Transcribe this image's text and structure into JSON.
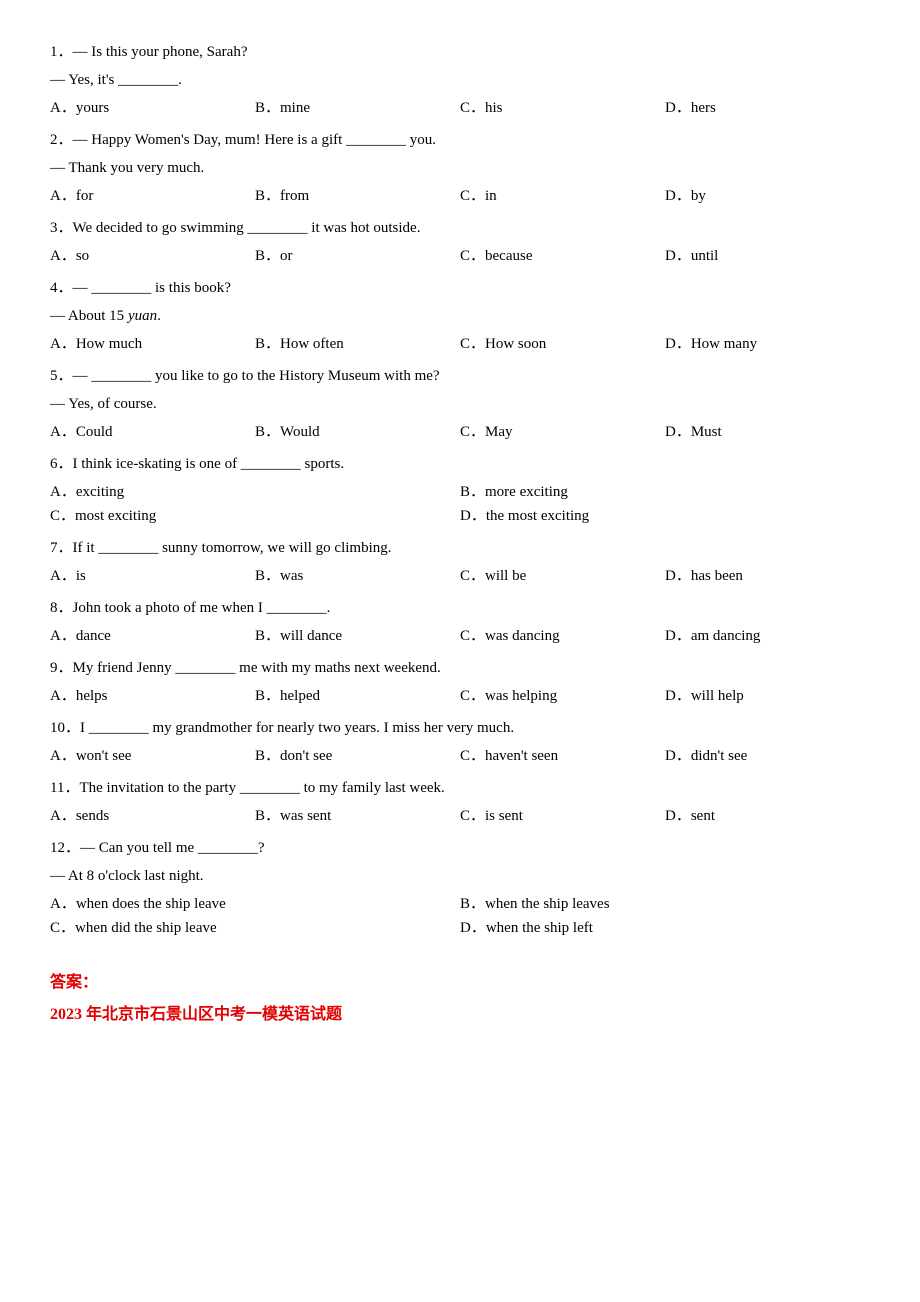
{
  "questions": [
    {
      "num": "1．",
      "lines": [
        "— Is this your phone, Sarah?",
        "— Yes, it's ________."
      ],
      "options": [
        {
          "letter": "A．",
          "text": "yours"
        },
        {
          "letter": "B．",
          "text": "mine"
        },
        {
          "letter": "C．",
          "text": "his"
        },
        {
          "letter": "D．",
          "text": "hers"
        }
      ],
      "cols": 4
    },
    {
      "num": "2．",
      "lines": [
        "— Happy Women's Day, mum! Here is a gift ________ you.",
        "— Thank you very much."
      ],
      "options": [
        {
          "letter": "A．",
          "text": "for"
        },
        {
          "letter": "B．",
          "text": "from"
        },
        {
          "letter": "C．",
          "text": "in"
        },
        {
          "letter": "D．",
          "text": "by"
        }
      ],
      "cols": 4
    },
    {
      "num": "3．",
      "lines": [
        "We decided to go swimming ________ it was hot outside."
      ],
      "options": [
        {
          "letter": "A．",
          "text": "so"
        },
        {
          "letter": "B．",
          "text": "or"
        },
        {
          "letter": "C．",
          "text": "because"
        },
        {
          "letter": "D．",
          "text": "until"
        }
      ],
      "cols": 4
    },
    {
      "num": "4．",
      "lines": [
        "— ________ is this book?",
        "— About 15 <span class=\"italic\">yuan</span>."
      ],
      "options": [
        {
          "letter": "A．",
          "text": "How much"
        },
        {
          "letter": "B．",
          "text": "How often"
        },
        {
          "letter": "C．",
          "text": "How soon"
        },
        {
          "letter": "D．",
          "text": "How many"
        }
      ],
      "cols": 4
    },
    {
      "num": "5．",
      "lines": [
        "— ________ you like to go to the History Museum with me?",
        "— Yes, of course."
      ],
      "options": [
        {
          "letter": "A．",
          "text": "Could"
        },
        {
          "letter": "B．",
          "text": "Would"
        },
        {
          "letter": "C．",
          "text": "May"
        },
        {
          "letter": "D．",
          "text": "Must"
        }
      ],
      "cols": 4
    },
    {
      "num": "6．",
      "lines": [
        "I think ice-skating is one of ________ sports."
      ],
      "options": [
        {
          "letter": "A．",
          "text": "exciting"
        },
        {
          "letter": "B．",
          "text": "more exciting"
        },
        {
          "letter": "C．",
          "text": "most exciting"
        },
        {
          "letter": "D．",
          "text": "the most exciting"
        }
      ],
      "cols": 2
    },
    {
      "num": "7．",
      "lines": [
        "If it ________ sunny tomorrow, we will go climbing."
      ],
      "options": [
        {
          "letter": "A．",
          "text": "is"
        },
        {
          "letter": "B．",
          "text": "was"
        },
        {
          "letter": "C．",
          "text": "will be"
        },
        {
          "letter": "D．",
          "text": "has been"
        }
      ],
      "cols": 4
    },
    {
      "num": "8．",
      "lines": [
        "John took a photo of me when I ________."
      ],
      "options": [
        {
          "letter": "A．",
          "text": "dance"
        },
        {
          "letter": "B．",
          "text": "will dance"
        },
        {
          "letter": "C．",
          "text": "was dancing"
        },
        {
          "letter": "D．",
          "text": "am dancing"
        }
      ],
      "cols": 4
    },
    {
      "num": "9．",
      "lines": [
        "My friend Jenny ________ me with my maths next weekend."
      ],
      "options": [
        {
          "letter": "A．",
          "text": "helps"
        },
        {
          "letter": "B．",
          "text": "helped"
        },
        {
          "letter": "C．",
          "text": "was helping"
        },
        {
          "letter": "D．",
          "text": "will help"
        }
      ],
      "cols": 4
    },
    {
      "num": "10．",
      "lines": [
        "I ________ my grandmother for nearly two years. I miss her very much."
      ],
      "options": [
        {
          "letter": "A．",
          "text": "won't see"
        },
        {
          "letter": "B．",
          "text": "don't see"
        },
        {
          "letter": "C．",
          "text": "haven't seen"
        },
        {
          "letter": "D．",
          "text": "didn't see"
        }
      ],
      "cols": 4
    },
    {
      "num": "11．",
      "lines": [
        "The invitation to the party ________ to my family last week."
      ],
      "options": [
        {
          "letter": "A．",
          "text": "sends"
        },
        {
          "letter": "B．",
          "text": "was sent"
        },
        {
          "letter": "C．",
          "text": "is sent"
        },
        {
          "letter": "D．",
          "text": "sent"
        }
      ],
      "cols": 4
    },
    {
      "num": "12．",
      "lines": [
        "— Can you tell me ________?",
        "— At 8 o'clock last night."
      ],
      "options": [
        {
          "letter": "A．",
          "text": "when does the ship leave"
        },
        {
          "letter": "B．",
          "text": "when the ship leaves"
        },
        {
          "letter": "C．",
          "text": "when did the ship leave"
        },
        {
          "letter": "D．",
          "text": "when the ship left"
        }
      ],
      "cols": 2
    }
  ],
  "answerHeading": "答案：",
  "subtitle": "2023 年北京市石景山区中考一模英语试题"
}
